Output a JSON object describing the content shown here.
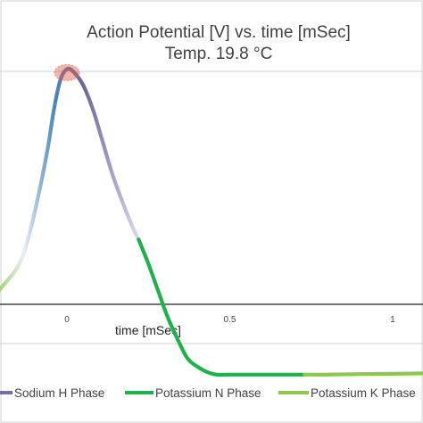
{
  "chart_data": {
    "type": "line",
    "title": "Action Potential [V] vs. time [mSec]",
    "subtitle": "Temp. 19.8 °C",
    "xlabel": "time [mSec]",
    "ylabel": "",
    "xlim": [
      -0.2,
      1.1
    ],
    "ylim": [
      -0.08,
      0.06
    ],
    "x_ticks": [
      "0",
      "0.5",
      "1"
    ],
    "x_tick_values": [
      0,
      0.5,
      1
    ],
    "grid": false,
    "legend_position": "bottom",
    "series": [
      {
        "name": "Sodium H Phase",
        "color_start": "#5b8fc7",
        "color_mid": "#8a83b0",
        "color_end": "#d6d0e6",
        "x": [
          -0.21,
          -0.15,
          -0.12,
          -0.09,
          -0.06,
          -0.04,
          -0.02,
          0.0,
          0.02,
          0.05,
          0.08,
          0.11,
          0.14,
          0.17,
          0.2,
          0.22
        ],
        "y": [
          -0.045,
          -0.036,
          -0.026,
          -0.011,
          0.007,
          0.022,
          0.033,
          0.037,
          0.036,
          0.031,
          0.022,
          0.01,
          -0.002,
          -0.012,
          -0.021,
          -0.026
        ]
      },
      {
        "name": "Potassium N Phase",
        "color": "#1db34a",
        "x": [
          0.22,
          0.25,
          0.28,
          0.31,
          0.34,
          0.37,
          0.4,
          0.43,
          0.46,
          0.5,
          0.55,
          0.6,
          0.65,
          0.7,
          0.73
        ],
        "y": [
          -0.026,
          -0.035,
          -0.045,
          -0.055,
          -0.063,
          -0.07,
          -0.073,
          -0.075,
          -0.076,
          -0.076,
          -0.076,
          -0.076,
          -0.076,
          -0.076,
          -0.076
        ]
      },
      {
        "name": "Potassium K Phase",
        "color": "#8cc84b",
        "x": [
          0.73,
          0.8,
          0.9,
          1.0,
          1.1
        ],
        "y": [
          -0.076,
          -0.076,
          -0.0758,
          -0.0757,
          -0.0755
        ]
      }
    ],
    "annotations": [
      {
        "type": "peak-marker",
        "x": 0.0,
        "y": 0.037,
        "color": "#e05a4a"
      }
    ]
  }
}
